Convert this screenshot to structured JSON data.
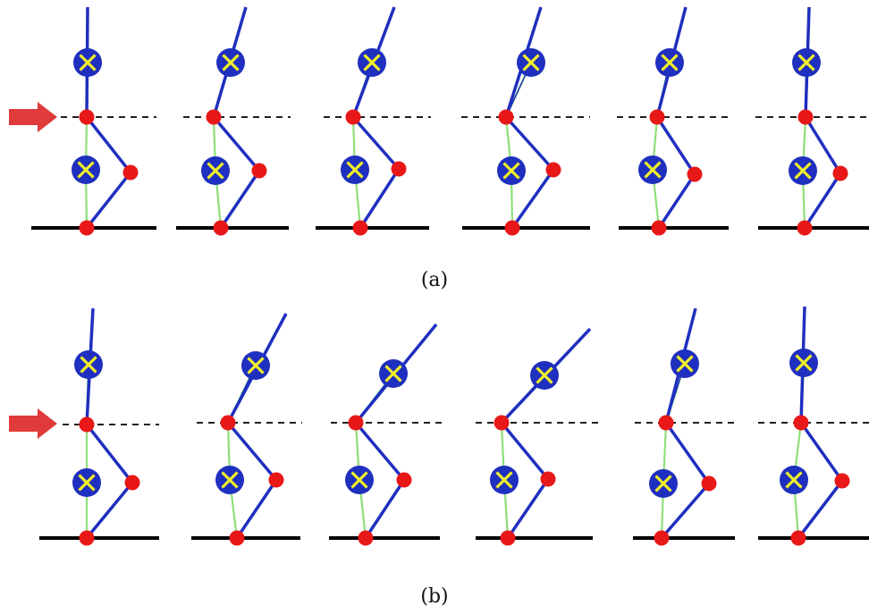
{
  "figure": {
    "colors": {
      "link": "#1f2fbf",
      "com_link": "#8ee07a",
      "joint": "#e81818",
      "com_fill": "#1f2fbf",
      "com_cross": "#f0f028",
      "ground": "#000000",
      "hip_line": "#000000",
      "arrow": "#e03a3a",
      "background": "#ffffff"
    },
    "icons": {
      "joint": "red-circle-joint-icon",
      "com": "blue-circle-yellow-cross-icon",
      "force": "red-push-arrow-icon"
    },
    "panels": [
      {
        "caption": "(a)"
      },
      {
        "caption": "(b)"
      }
    ]
  }
}
